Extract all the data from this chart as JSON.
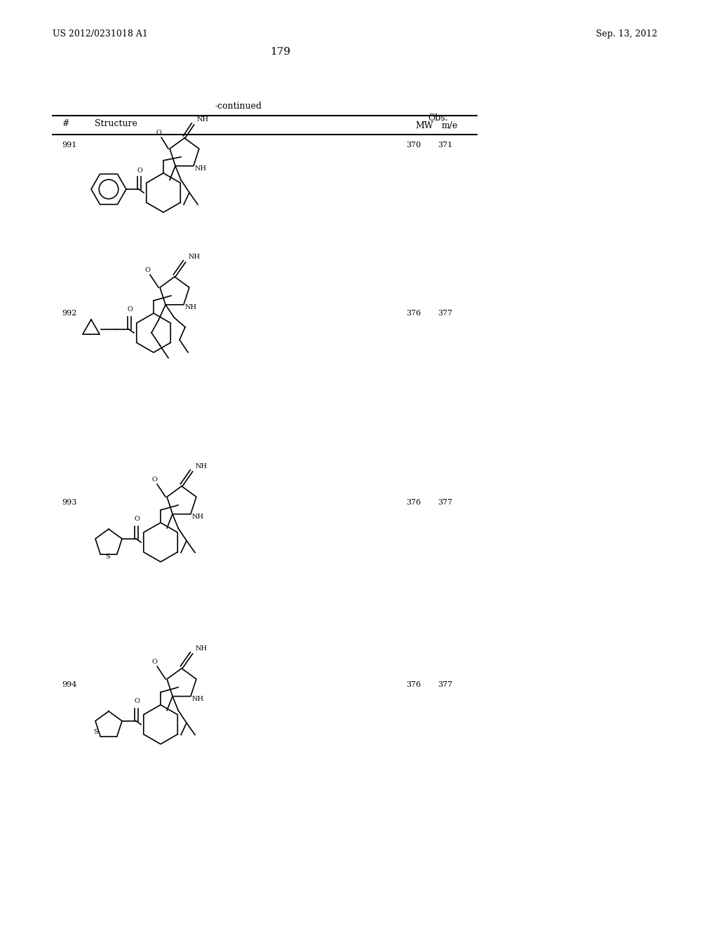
{
  "page_number": "179",
  "patent_number": "US 2012/0231018 A1",
  "patent_date": "Sep. 13, 2012",
  "continued_label": "-continued",
  "col_headers": [
    "#",
    "Structure",
    "MW",
    "Obs.\nm/e"
  ],
  "compounds": [
    {
      "num": "991",
      "mw": "370",
      "obs": "371"
    },
    {
      "num": "992",
      "mw": "376",
      "obs": "377"
    },
    {
      "num": "993",
      "mw": "376",
      "obs": "377"
    },
    {
      "num": "994",
      "mw": "376",
      "obs": "377"
    }
  ],
  "bg_color": "#ffffff",
  "text_color": "#000000",
  "font_size_header": 9,
  "font_size_body": 8,
  "font_size_page": 9,
  "font_size_patent": 9
}
